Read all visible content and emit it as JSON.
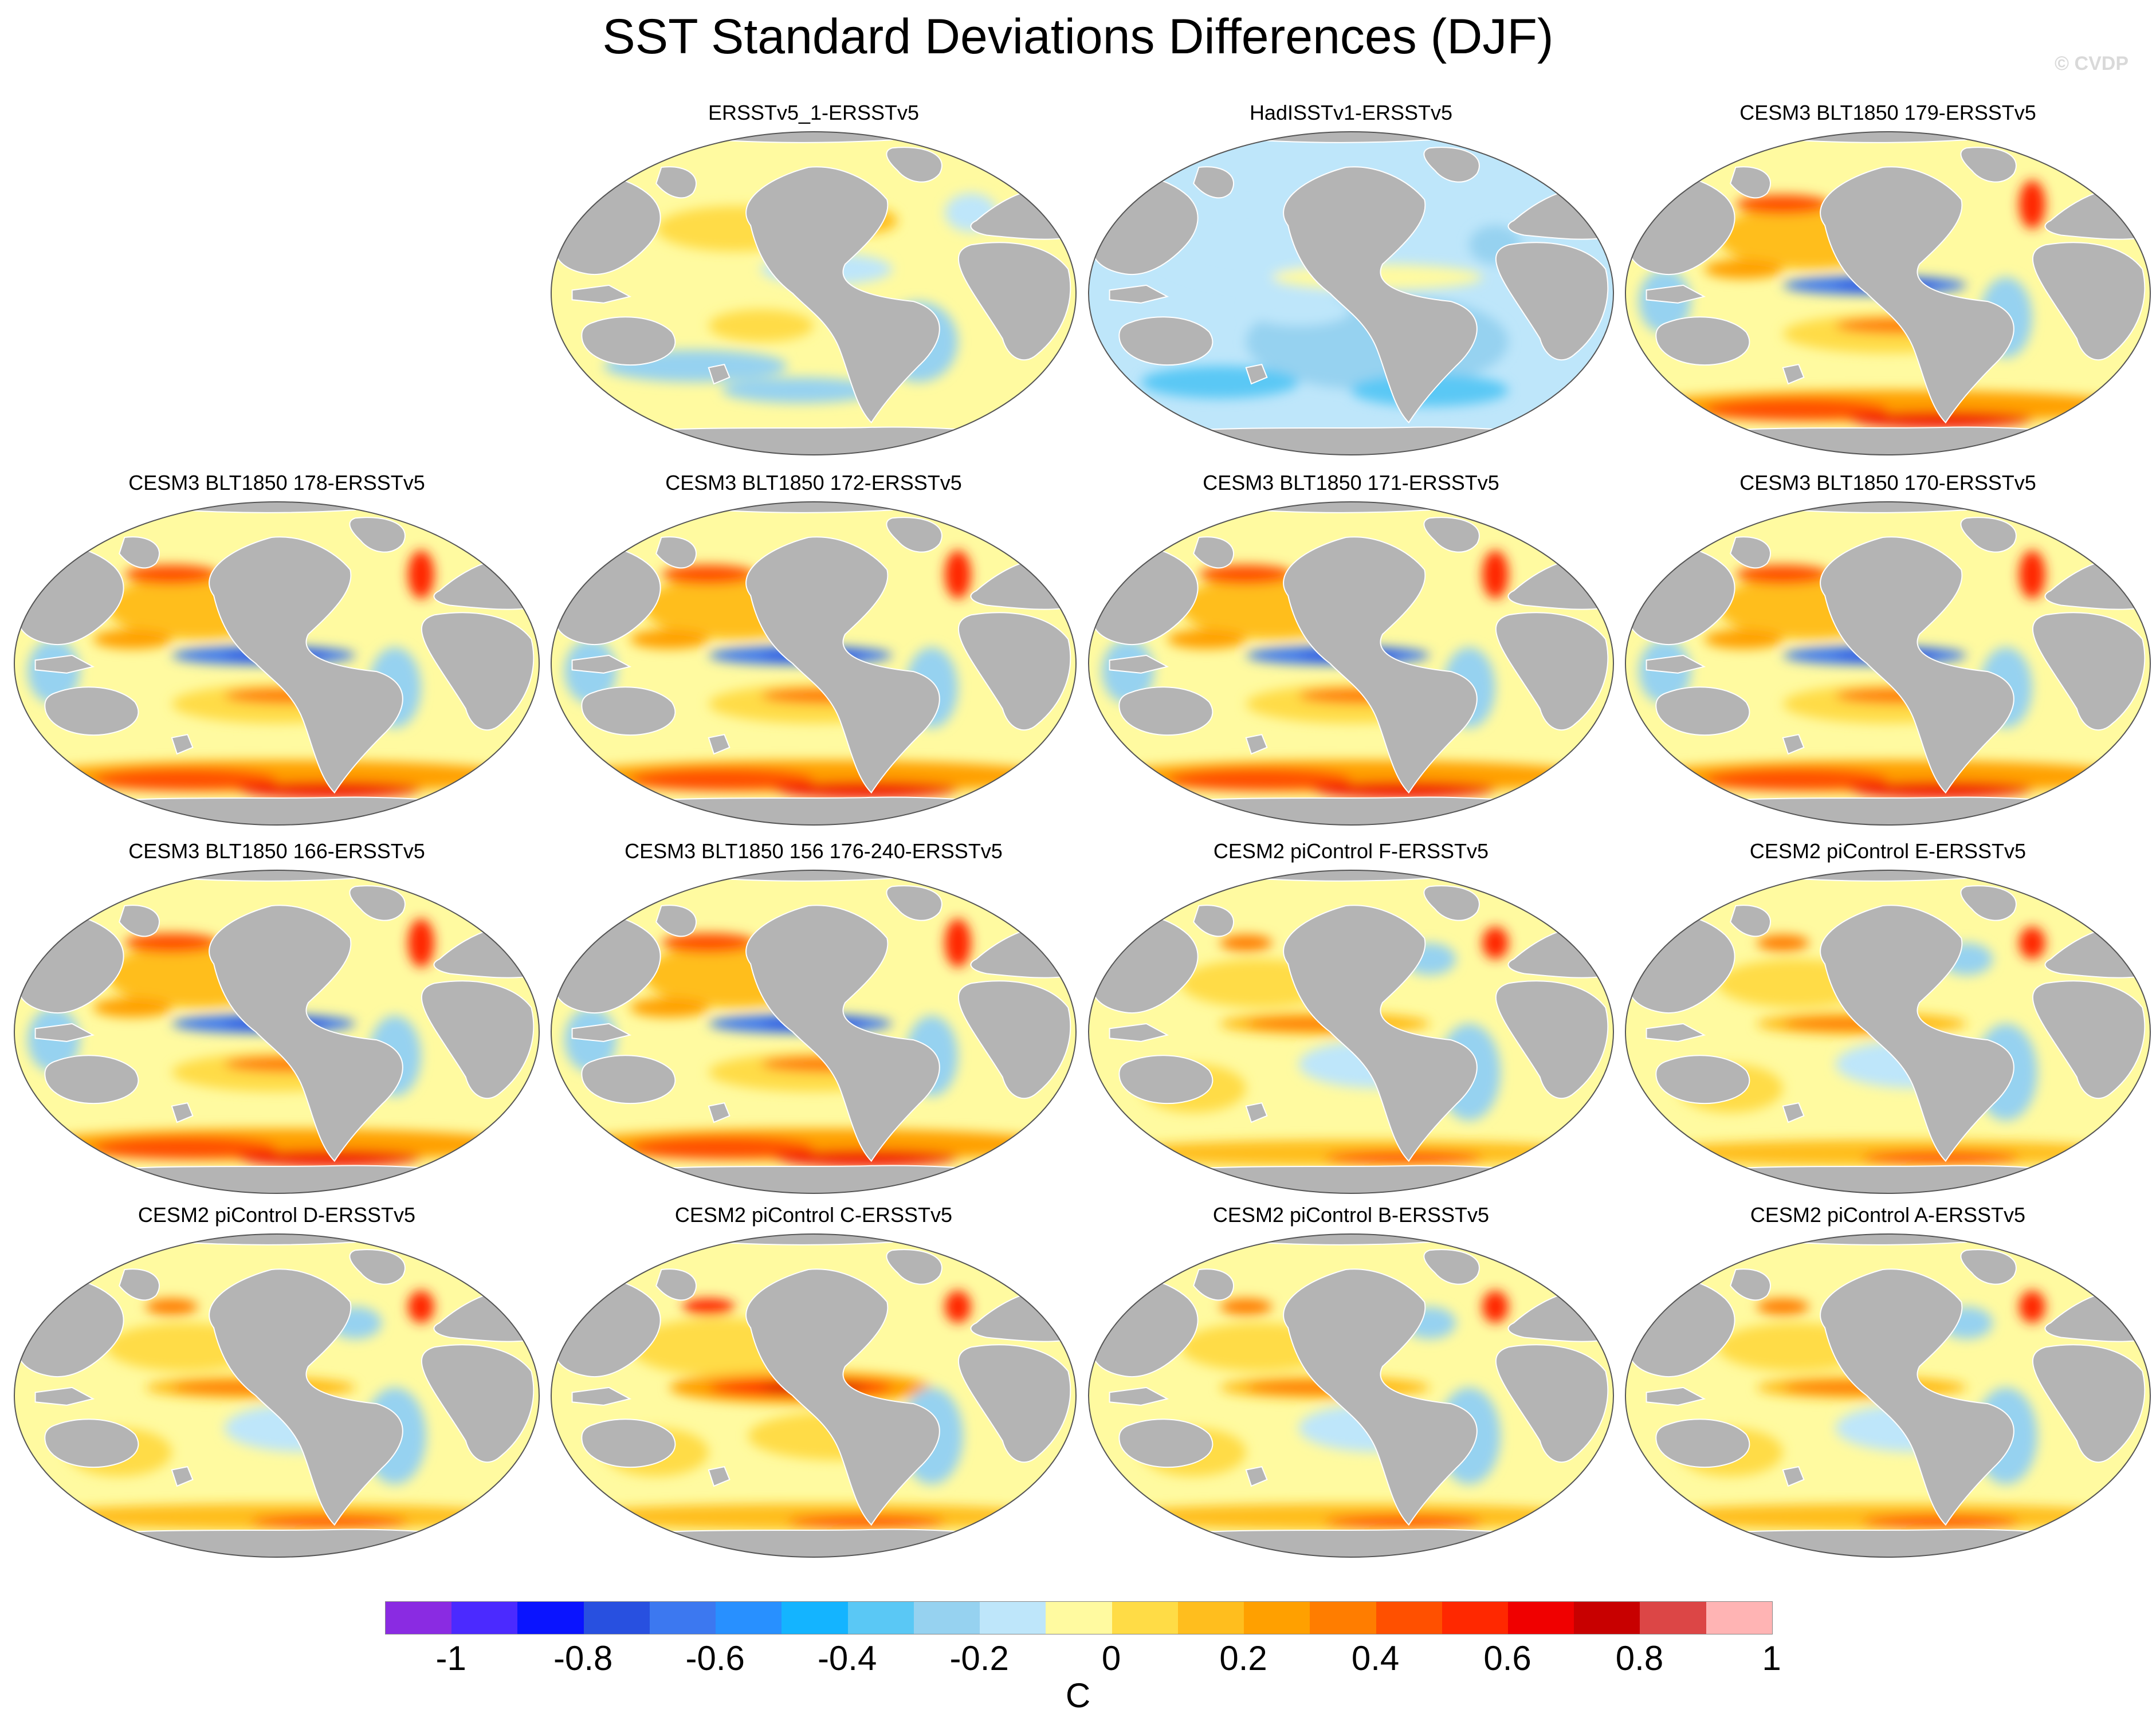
{
  "title": "SST Standard Deviations Differences (DJF)",
  "copyright": "© CVDP",
  "panels": [
    {
      "title": "ERSSTv5_1-ERSSTv5",
      "style": "mild"
    },
    {
      "title": "HadISSTv1-ERSSTv5",
      "style": "cool"
    },
    {
      "title": "CESM3 BLT1850 179-ERSSTv5",
      "style": "cesm3"
    },
    {
      "title": "CESM3 BLT1850 178-ERSSTv5",
      "style": "cesm3"
    },
    {
      "title": "CESM3 BLT1850 172-ERSSTv5",
      "style": "cesm3"
    },
    {
      "title": "CESM3 BLT1850 171-ERSSTv5",
      "style": "cesm3"
    },
    {
      "title": "CESM3 BLT1850 170-ERSSTv5",
      "style": "cesm3"
    },
    {
      "title": "CESM3 BLT1850 166-ERSSTv5",
      "style": "cesm3"
    },
    {
      "title": "CESM3 BLT1850 156 176-240-ERSSTv5",
      "style": "cesm3"
    },
    {
      "title": "CESM2 piControl F-ERSSTv5",
      "style": "cesm2"
    },
    {
      "title": "CESM2 piControl E-ERSSTv5",
      "style": "cesm2"
    },
    {
      "title": "CESM2 piControl D-ERSSTv5",
      "style": "cesm2"
    },
    {
      "title": "CESM2 piControl C-ERSSTv5",
      "style": "cesm2strong"
    },
    {
      "title": "CESM2 piControl B-ERSSTv5",
      "style": "cesm2"
    },
    {
      "title": "CESM2 piControl A-ERSSTv5",
      "style": "cesm2"
    }
  ],
  "colorbar": {
    "colors": [
      "#8a2be2",
      "#4b2aff",
      "#0a14ff",
      "#2850e0",
      "#3c78f0",
      "#2890ff",
      "#14b4ff",
      "#5ac8f5",
      "#96d2f0",
      "#bee6fa",
      "#fffaa0",
      "#ffdc46",
      "#ffbe1e",
      "#ffa000",
      "#ff7d00",
      "#ff5000",
      "#ff2800",
      "#f00000",
      "#c80000",
      "#dc4646",
      "#ffb4b4"
    ],
    "labels": [
      "-1",
      "-0.8",
      "-0.6",
      "-0.4",
      "-0.2",
      "0",
      "0.2",
      "0.4",
      "0.6",
      "0.8",
      "1"
    ],
    "unit": "C"
  }
}
